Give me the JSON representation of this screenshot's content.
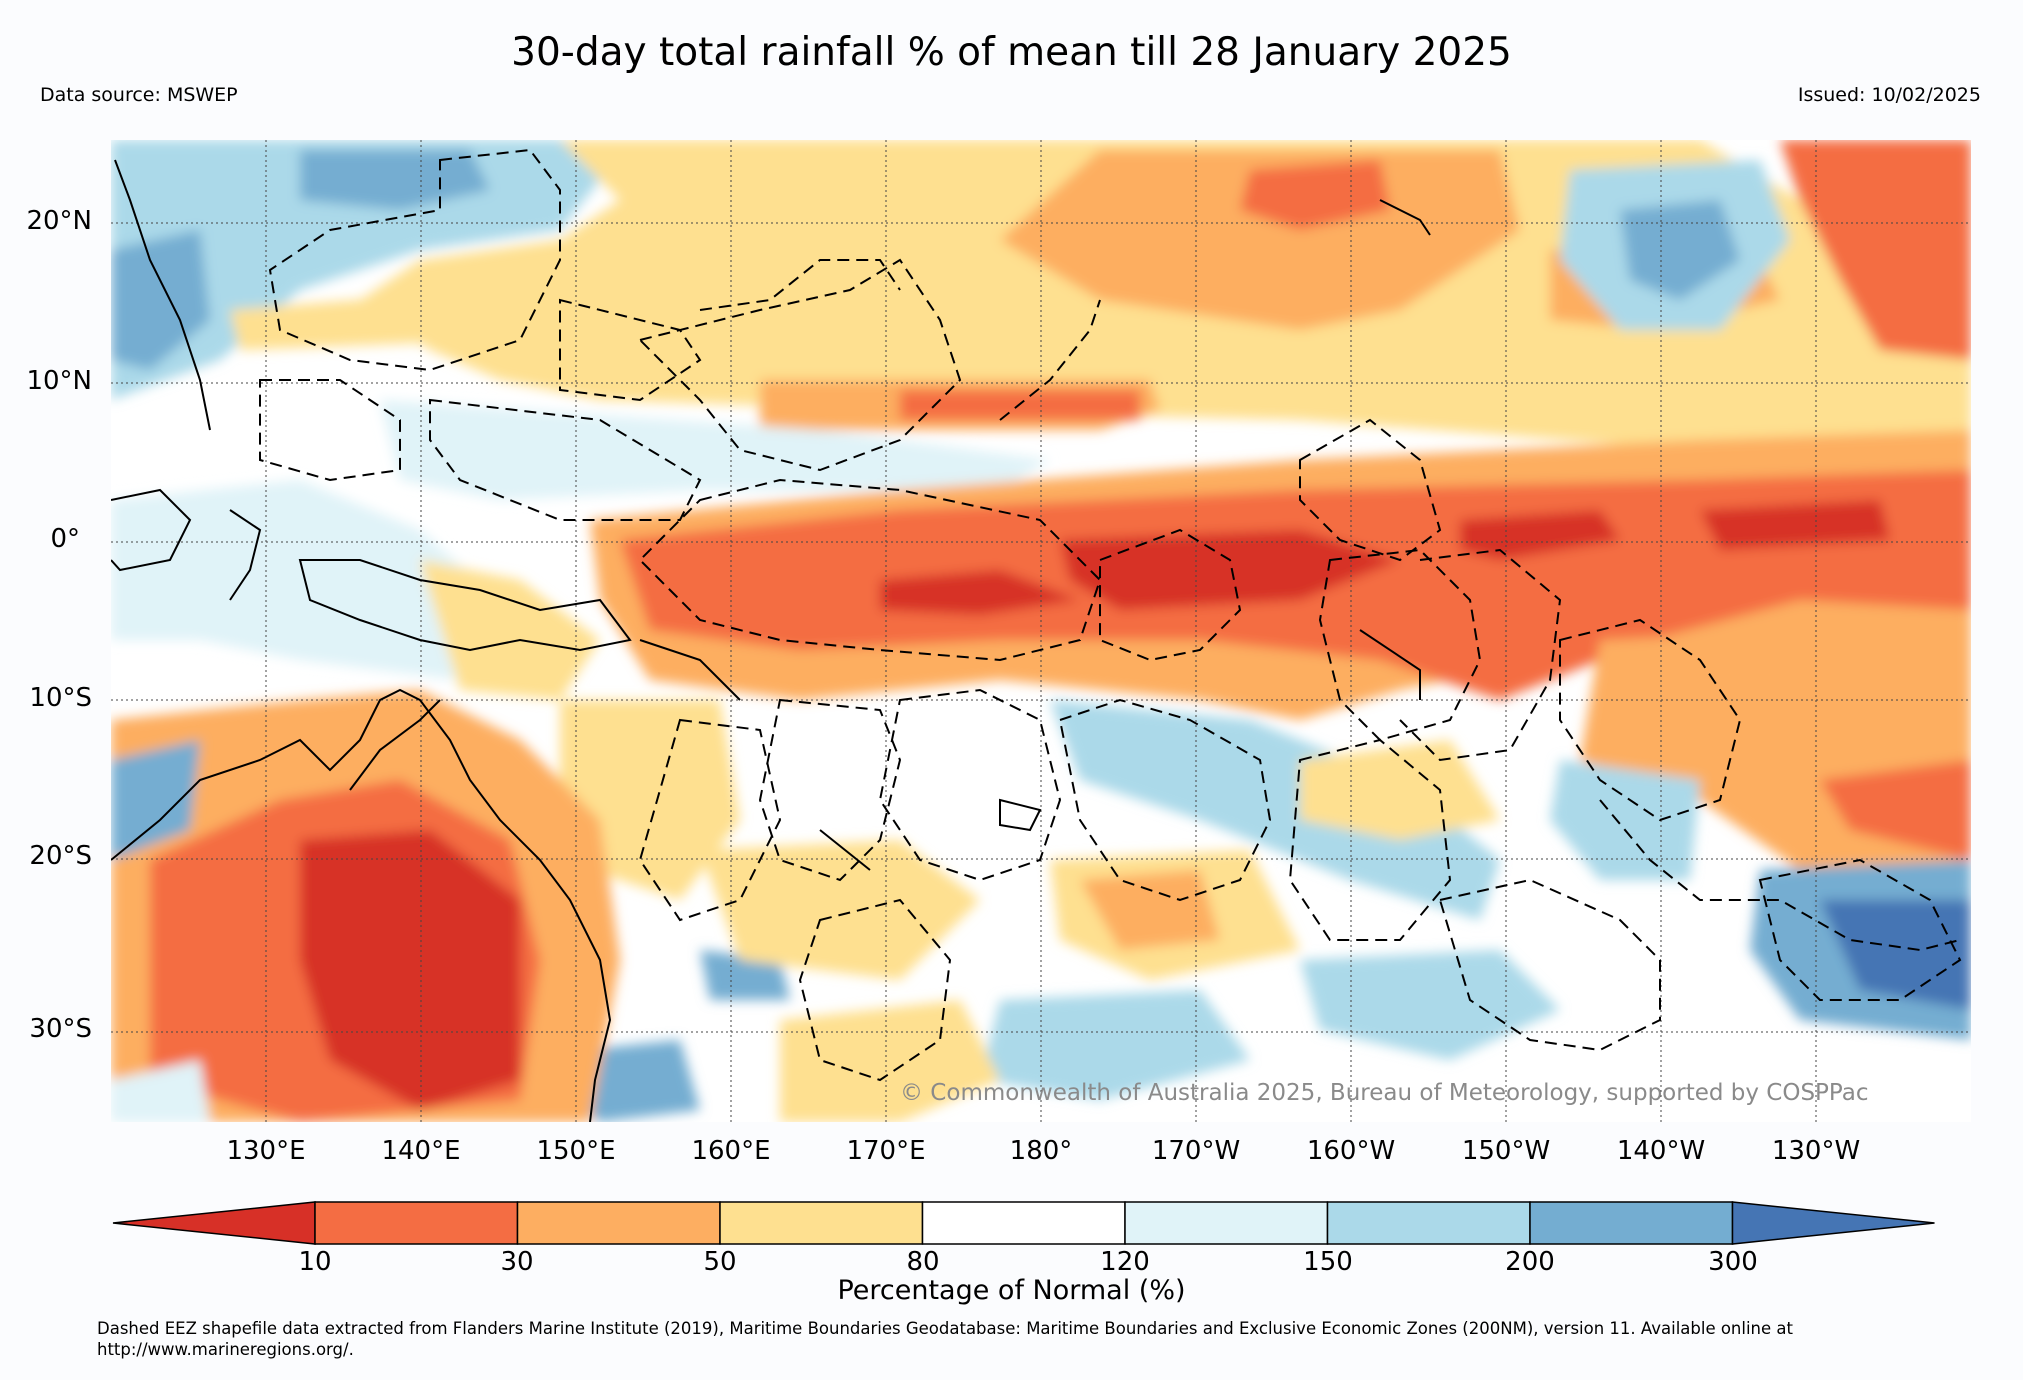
{
  "header": {
    "title": "30-day total rainfall % of mean till 28 January 2025",
    "source": "Data source: MSWEP",
    "issued": "Issued: 10/02/2025"
  },
  "map": {
    "lat_labels": [
      "20°N",
      "10°N",
      "0°",
      "10°S",
      "20°S",
      "30°S"
    ],
    "lon_labels": [
      "130°E",
      "140°E",
      "150°E",
      "160°E",
      "170°E",
      "180°",
      "170°W",
      "160°W",
      "150°W",
      "140°W",
      "130°W"
    ],
    "copyright": "© Commonwealth of Australia 2025, Bureau of Meteorology, supported by COSPPac"
  },
  "legend": {
    "title": "Percentage of Normal (%)",
    "ticks": [
      "10",
      "30",
      "50",
      "80",
      "120",
      "150",
      "200",
      "300"
    ],
    "colors": [
      "#d73027",
      "#f46d43",
      "#fdae61",
      "#fee090",
      "#ffffff",
      "#e0f3f8",
      "#abd9e9",
      "#74add1",
      "#4575b4"
    ]
  },
  "footnote": "Dashed EEZ shapefile data extracted from Flanders Marine Institute (2019), Maritime Boundaries Geodatabase: Maritime Boundaries and Exclusive Economic Zones (200NM), version 11. Available online at http://www.marineregions.org/."
}
